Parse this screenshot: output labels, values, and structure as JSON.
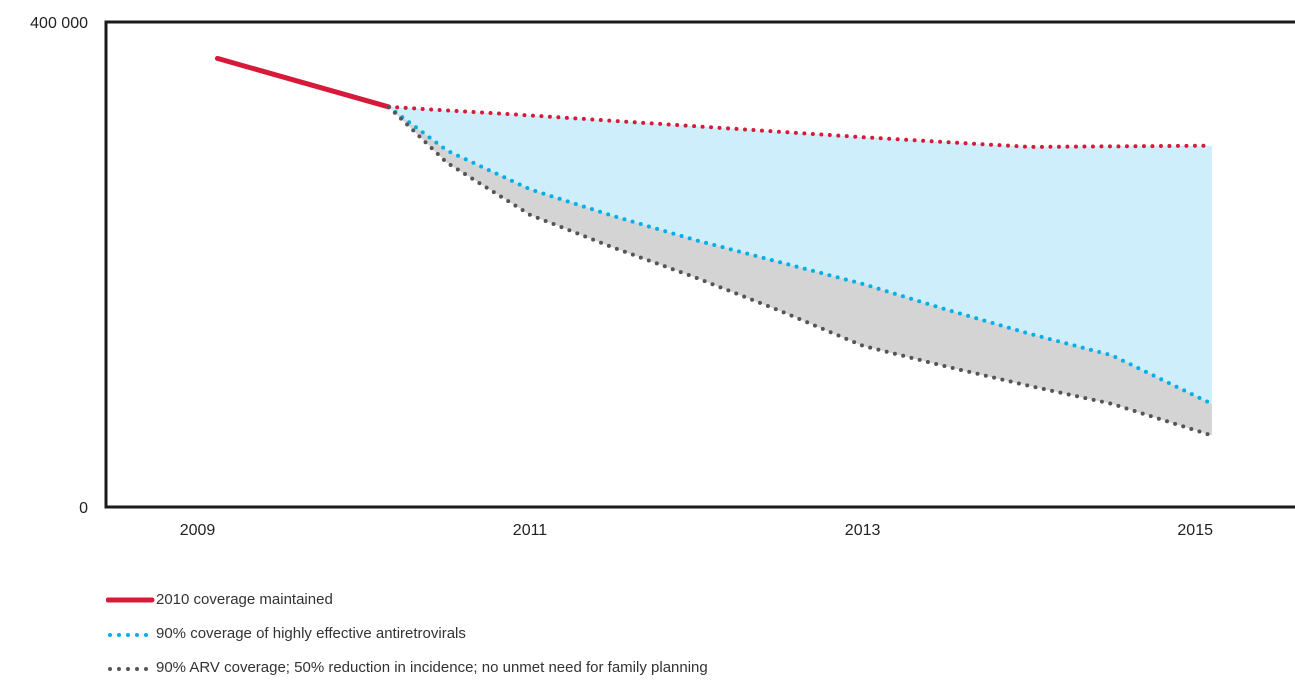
{
  "chart_data": {
    "type": "line",
    "title": "",
    "xlabel": "",
    "ylabel": "",
    "x_ticks": [
      "2009",
      "2011",
      "2013",
      "2015"
    ],
    "y_ticks": [
      "0",
      "400 000"
    ],
    "xlim": [
      2008.45,
      2015.6
    ],
    "ylim": [
      0,
      400000
    ],
    "grid": false,
    "legend_position": "bottom-left",
    "series": [
      {
        "name": "2010 coverage maintained",
        "color": "#d7193a",
        "style": "solid",
        "points": [
          [
            2009.12,
            370000
          ],
          [
            2010.15,
            330000
          ]
        ]
      },
      {
        "name": "2010 coverage maintained",
        "color": "#d7193a",
        "style": "dotted",
        "points": [
          [
            2010.15,
            330000
          ],
          [
            2011.0,
            323000
          ],
          [
            2012.0,
            314000
          ],
          [
            2013.0,
            305000
          ],
          [
            2014.0,
            297000
          ],
          [
            2015.1,
            298000
          ]
        ]
      },
      {
        "name": "90% coverage of highly effective antiretrovirals",
        "color": "#00aee8",
        "style": "dotted",
        "points": [
          [
            2010.15,
            330000
          ],
          [
            2010.5,
            294000
          ],
          [
            2011.0,
            262000
          ],
          [
            2011.5,
            240000
          ],
          [
            2012.0,
            220000
          ],
          [
            2012.5,
            202000
          ],
          [
            2013.0,
            184000
          ],
          [
            2013.5,
            163000
          ],
          [
            2014.0,
            143000
          ],
          [
            2014.5,
            125000
          ],
          [
            2015.1,
            85000
          ]
        ]
      },
      {
        "name": "90% ARV coverage; 50% reduction in incidence; no unmet need for family planning",
        "color": "#555555",
        "style": "dotted",
        "points": [
          [
            2010.15,
            330000
          ],
          [
            2010.5,
            284000
          ],
          [
            2011.0,
            241000
          ],
          [
            2011.5,
            214000
          ],
          [
            2012.0,
            189000
          ],
          [
            2012.5,
            162000
          ],
          [
            2013.0,
            133000
          ],
          [
            2013.5,
            116000
          ],
          [
            2014.0,
            100000
          ],
          [
            2014.5,
            85000
          ],
          [
            2015.1,
            59000
          ]
        ]
      }
    ],
    "shaded_areas": [
      {
        "between": [
          "2010 coverage maintained",
          "90% coverage of highly effective antiretrovirals"
        ],
        "color": "#cdeefa"
      },
      {
        "between": [
          "90% coverage of highly effective antiretrovirals",
          "90% ARV coverage; 50% reduction in incidence; no unmet need for family planning"
        ],
        "color": "#d4d4d4"
      }
    ]
  },
  "legend": {
    "items": [
      {
        "label": "2010 coverage maintained",
        "color": "#d7193a",
        "style": "solid"
      },
      {
        "label": "90% coverage of highly effective antiretrovirals",
        "color": "#00aee8",
        "style": "dotted"
      },
      {
        "label": "90% ARV coverage; 50% reduction in incidence; no unmet need for family planning",
        "color": "#555555",
        "style": "dotted"
      }
    ]
  }
}
